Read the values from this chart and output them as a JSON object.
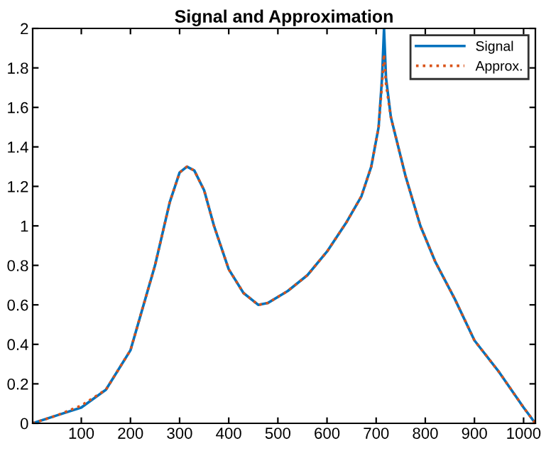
{
  "chart_data": {
    "type": "line",
    "title": "Signal and Approximation",
    "x": [
      1,
      50,
      100,
      150,
      200,
      250,
      280,
      300,
      315,
      330,
      350,
      370,
      400,
      430,
      460,
      480,
      520,
      560,
      600,
      640,
      670,
      690,
      705,
      712,
      716,
      720,
      730,
      760,
      790,
      820,
      860,
      900,
      950,
      1000,
      1024
    ],
    "series": [
      {
        "name": "Signal",
        "color": "#0072bd",
        "line_style": "solid",
        "values": [
          0,
          0.04,
          0.08,
          0.17,
          0.37,
          0.8,
          1.12,
          1.27,
          1.3,
          1.28,
          1.18,
          1.0,
          0.78,
          0.66,
          0.6,
          0.61,
          0.67,
          0.75,
          0.87,
          1.02,
          1.15,
          1.3,
          1.5,
          1.75,
          2.0,
          1.75,
          1.55,
          1.25,
          1.0,
          0.82,
          0.63,
          0.42,
          0.26,
          0.08,
          0
        ]
      },
      {
        "name": "Approx.",
        "color": "#d95319",
        "line_style": "dotted",
        "values": [
          0,
          0.04,
          0.09,
          0.17,
          0.37,
          0.8,
          1.12,
          1.27,
          1.3,
          1.28,
          1.18,
          1.0,
          0.78,
          0.66,
          0.6,
          0.61,
          0.67,
          0.75,
          0.87,
          1.02,
          1.15,
          1.3,
          1.5,
          1.72,
          1.87,
          1.72,
          1.55,
          1.25,
          1.0,
          0.82,
          0.63,
          0.42,
          0.26,
          0.08,
          0
        ]
      }
    ],
    "xlim": [
      1,
      1024
    ],
    "xticks": [
      100,
      200,
      300,
      400,
      500,
      600,
      700,
      800,
      900,
      1000
    ],
    "ylim": [
      0,
      2
    ],
    "yticks": [
      0,
      0.2,
      0.4,
      0.6,
      0.8,
      1,
      1.2,
      1.4,
      1.6,
      1.8,
      2
    ],
    "grid": false,
    "legend": "top right"
  }
}
